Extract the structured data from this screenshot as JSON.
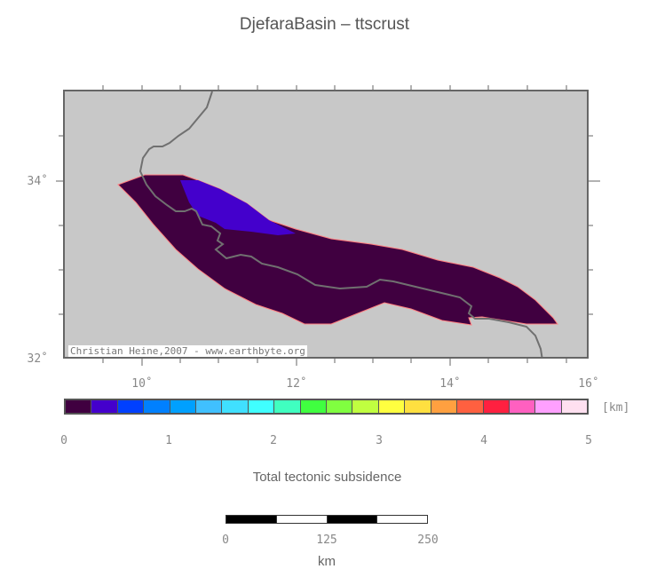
{
  "title": "DjefaraBasin – ttscrust",
  "map": {
    "lat_labels": [
      "34˚",
      "32˚"
    ],
    "lon_labels": [
      "10˚",
      "12˚",
      "14˚",
      "16˚"
    ],
    "credit": "Christian Heine,2007 - www.earthbyte.org",
    "colors": {
      "ocean_land": "#c8c8c8",
      "basin_fill": "#400040",
      "basin_high": "#4400cc",
      "coastline": "#707070",
      "basin_edge": "#ff7f7f"
    }
  },
  "colorbar": {
    "colors": [
      "#400040",
      "#4400cc",
      "#0040ff",
      "#0080ff",
      "#00a0ff",
      "#40c0ff",
      "#40e0ff",
      "#40ffff",
      "#40ffc0",
      "#40ff40",
      "#80ff40",
      "#c0ff40",
      "#ffff40",
      "#ffe040",
      "#ffa040",
      "#ff6040",
      "#ff2040",
      "#ff60c0",
      "#ffa0ff",
      "#ffe0f0"
    ],
    "ticks": [
      "0",
      "1",
      "2",
      "3",
      "4",
      "5"
    ],
    "unit": "[km]",
    "title": "Total tectonic subsidence"
  },
  "scalebar": {
    "ticks": [
      "0",
      "125",
      "250"
    ],
    "unit": "km"
  }
}
